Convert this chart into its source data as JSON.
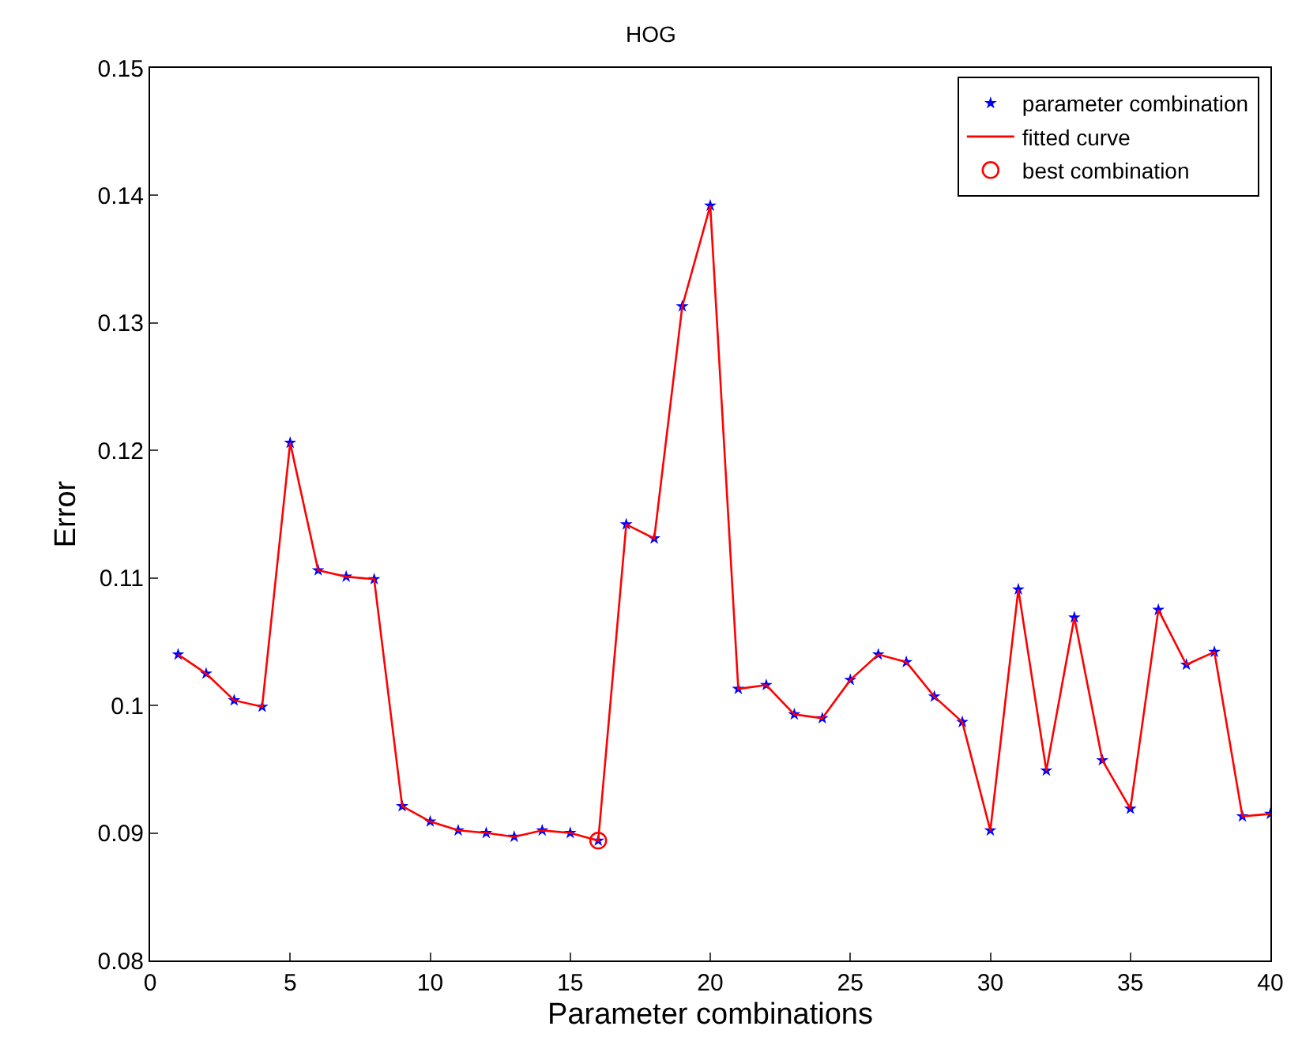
{
  "chart_data": {
    "type": "scatter",
    "title": "HOG",
    "xlabel": "Parameter combinations",
    "ylabel": "Error",
    "x": [
      1,
      2,
      3,
      4,
      5,
      6,
      7,
      8,
      9,
      10,
      11,
      12,
      13,
      14,
      15,
      16,
      17,
      18,
      19,
      20,
      21,
      22,
      23,
      24,
      25,
      26,
      27,
      28,
      29,
      30,
      31,
      32,
      33,
      34,
      35,
      36,
      37,
      38,
      39,
      40
    ],
    "series": [
      {
        "name": "parameter combination",
        "marker": "star",
        "color": "#0000ff",
        "values": [
          0.104,
          0.1025,
          0.1004,
          0.0999,
          0.1206,
          0.1106,
          0.1101,
          0.1099,
          0.0921,
          0.0909,
          0.0902,
          0.09,
          0.0897,
          0.0902,
          0.09,
          0.0894,
          0.1142,
          0.1131,
          0.1313,
          0.1392,
          0.1013,
          0.1016,
          0.0993,
          0.099,
          0.102,
          0.104,
          0.1034,
          0.1007,
          0.0987,
          0.0902,
          0.1091,
          0.0949,
          0.1069,
          0.0957,
          0.0919,
          0.1075,
          0.1032,
          0.1042,
          0.0913,
          0.0915
        ]
      },
      {
        "name": "fitted curve",
        "type": "line",
        "marker": "none",
        "line_style": "solid",
        "color": "#ff0000",
        "values": [
          0.104,
          0.1025,
          0.1004,
          0.0999,
          0.1206,
          0.1106,
          0.1101,
          0.1099,
          0.0921,
          0.0909,
          0.0902,
          0.09,
          0.0897,
          0.0902,
          0.09,
          0.0894,
          0.1142,
          0.1131,
          0.1313,
          0.1392,
          0.1013,
          0.1016,
          0.0993,
          0.099,
          0.102,
          0.104,
          0.1034,
          0.1007,
          0.0987,
          0.0902,
          0.1091,
          0.0949,
          0.1069,
          0.0957,
          0.0919,
          0.1075,
          0.1032,
          0.1042,
          0.0913,
          0.0915
        ]
      },
      {
        "name": "best combination",
        "marker": "circle",
        "color": "#ff0000",
        "x": [
          16
        ],
        "values": [
          0.0894
        ]
      }
    ],
    "xlim": [
      0,
      40
    ],
    "xticks": [
      0,
      5,
      10,
      15,
      20,
      25,
      30,
      35,
      40
    ],
    "ylim": [
      0.08,
      0.15
    ],
    "yticks": [
      0.08,
      0.09,
      0.1,
      0.11,
      0.12,
      0.13,
      0.14,
      0.15
    ],
    "legend": "top right"
  }
}
